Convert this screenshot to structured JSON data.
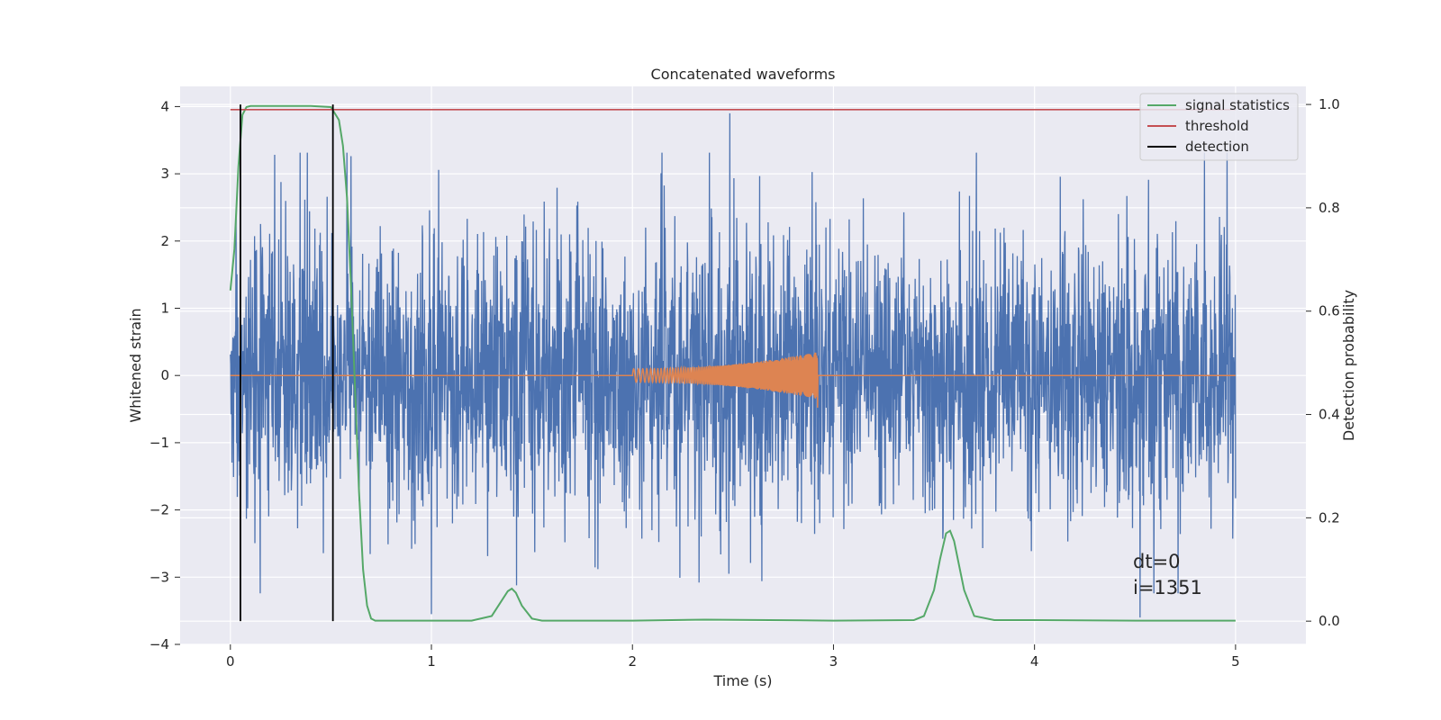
{
  "chart_data": {
    "type": "line",
    "title": "Concatenated waveforms",
    "xlabel": "Time (s)",
    "ylabel": "Whitened strain",
    "y2label": "Detection probability",
    "xlim": [
      -0.25,
      5.35
    ],
    "ylim": [
      -4,
      4.3
    ],
    "y2lim": [
      -0.045,
      1.035
    ],
    "xticks": [
      0,
      1,
      2,
      3,
      4,
      5
    ],
    "yticks": [
      -4,
      -3,
      -2,
      -1,
      0,
      1,
      2,
      3,
      4
    ],
    "y2ticks": [
      0.0,
      0.2,
      0.4,
      0.6,
      0.8,
      1.0
    ],
    "grid": true,
    "legend_position": "top-right",
    "legend": [
      "signal statistics",
      "threshold",
      "detection"
    ],
    "colors": {
      "strain": "#4c72b0",
      "injected": "#dd8452",
      "signal": "#55a868",
      "threshold": "#c44e52",
      "detection": "#000000",
      "background": "#eaeaf2"
    },
    "series": [
      {
        "name": "signal statistics",
        "axis": "right",
        "x": [
          0.0,
          0.02,
          0.04,
          0.06,
          0.08,
          0.1,
          0.2,
          0.3,
          0.4,
          0.5,
          0.54,
          0.56,
          0.58,
          0.6,
          0.62,
          0.64,
          0.66,
          0.68,
          0.7,
          0.72,
          0.75,
          0.8,
          1.0,
          1.2,
          1.3,
          1.35,
          1.38,
          1.4,
          1.42,
          1.45,
          1.5,
          1.55,
          1.6,
          2.0,
          2.36,
          3.0,
          3.4,
          3.45,
          3.5,
          3.53,
          3.56,
          3.58,
          3.6,
          3.65,
          3.7,
          3.8,
          4.0,
          4.5,
          5.0
        ],
        "y": [
          0.64,
          0.72,
          0.88,
          0.98,
          0.995,
          0.997,
          0.997,
          0.997,
          0.997,
          0.995,
          0.97,
          0.92,
          0.82,
          0.65,
          0.45,
          0.25,
          0.1,
          0.03,
          0.005,
          0.001,
          0.001,
          0.001,
          0.001,
          0.001,
          0.01,
          0.04,
          0.058,
          0.063,
          0.055,
          0.03,
          0.005,
          0.001,
          0.001,
          0.001,
          0.003,
          0.001,
          0.002,
          0.01,
          0.06,
          0.12,
          0.17,
          0.175,
          0.155,
          0.06,
          0.01,
          0.002,
          0.002,
          0.001,
          0.001
        ]
      },
      {
        "name": "threshold",
        "axis": "right",
        "x": [
          0.0,
          5.0
        ],
        "y": [
          0.99,
          0.99
        ]
      },
      {
        "name": "detection",
        "axis": "right",
        "x": [
          0.05,
          0.51
        ],
        "y": [
          0.0,
          1.0
        ]
      },
      {
        "name": "",
        "axis": "left",
        "x_range": [
          0.0,
          5.0
        ],
        "envelope": [
          -2.0,
          2.0
        ],
        "max_peak": 3.9,
        "min_peak": -3.6
      },
      {
        "name": "",
        "axis": "left",
        "x_range": [
          2.0,
          2.92
        ],
        "envelope_start": 0.1,
        "envelope_end": 0.35
      }
    ],
    "annotations": [
      "dt=0",
      "i=1351"
    ]
  }
}
